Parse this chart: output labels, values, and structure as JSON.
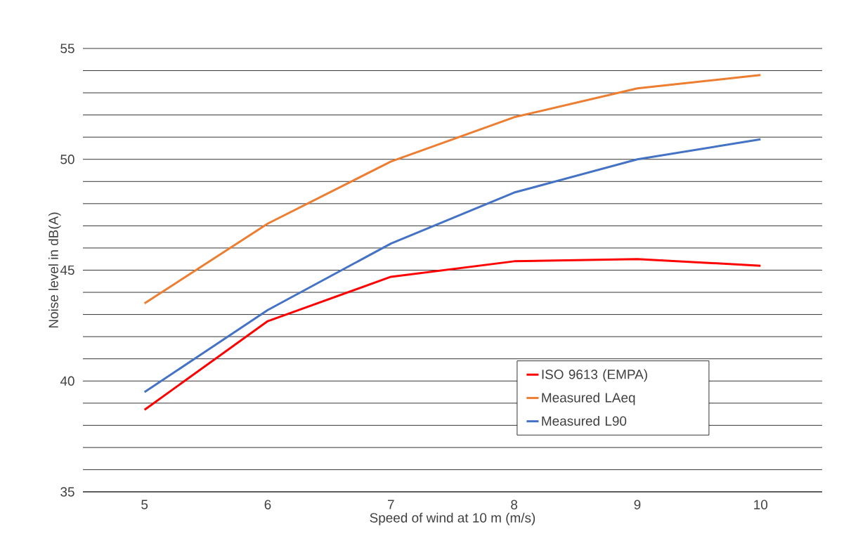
{
  "chart_data": {
    "type": "line",
    "xlabel": "Speed of wind at 10 m (m/s)",
    "ylabel": "Noise level in  dB(A)",
    "categories": [
      "5",
      "6",
      "7",
      "8",
      "9",
      "10"
    ],
    "series": [
      {
        "name": "ISO 9613 (EMPA)",
        "color": "#ff0000",
        "values": [
          38.7,
          42.7,
          44.7,
          45.4,
          45.5,
          45.2
        ]
      },
      {
        "name": "Measured LAeq",
        "color": "#ed7d31",
        "values": [
          43.5,
          47.1,
          49.9,
          51.9,
          53.2,
          53.8
        ]
      },
      {
        "name": "Measured L90",
        "color": "#4472c4",
        "values": [
          39.5,
          43.2,
          46.2,
          48.5,
          50.0,
          50.9
        ]
      }
    ],
    "ylim": [
      35,
      55
    ],
    "yticks": [
      35,
      {
        "value": 36,
        "label": null
      },
      {
        "value": 37,
        "label": null
      },
      {
        "value": 38,
        "label": null
      },
      {
        "value": 39,
        "label": null
      },
      40,
      {
        "value": 41,
        "label": null
      },
      {
        "value": 42,
        "label": null
      },
      {
        "value": 43,
        "label": null
      },
      {
        "value": 44,
        "label": null
      },
      45,
      {
        "value": 46,
        "label": null
      },
      {
        "value": 47,
        "label": null
      },
      {
        "value": 48,
        "label": null
      },
      {
        "value": 49,
        "label": null
      },
      50,
      {
        "value": 51,
        "label": null
      },
      {
        "value": 52,
        "label": null
      },
      {
        "value": 53,
        "label": null
      },
      {
        "value": 54,
        "label": null
      },
      55
    ],
    "grid": "y",
    "legend": "bottom right",
    "marker": "none",
    "line_style": "solid"
  }
}
